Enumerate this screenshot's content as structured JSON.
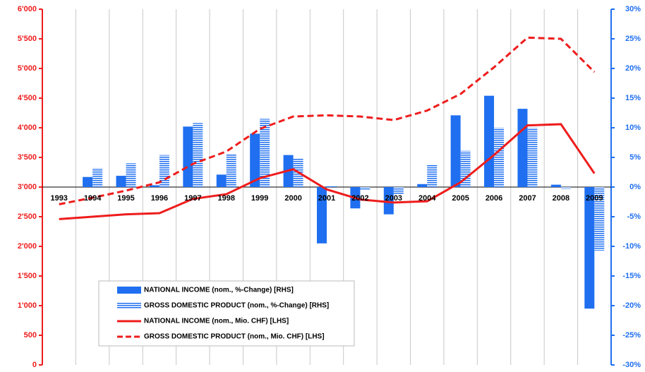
{
  "chart_data": {
    "type": "bar",
    "categories": [
      "1993",
      "1994",
      "1995",
      "1996",
      "1997",
      "1998",
      "1999",
      "2000",
      "2001",
      "2002",
      "2003",
      "2004",
      "2005",
      "2006",
      "2007",
      "2008",
      "2009"
    ],
    "series": [
      {
        "name": "NATIONAL INCOME (nom., %-Change) [RHS]",
        "type": "bar",
        "axis": "y2",
        "color": "#1f6ff0",
        "fill_style": "solid",
        "values": [
          null,
          1.7,
          1.9,
          0.3,
          10.2,
          2.1,
          9.0,
          5.4,
          -9.5,
          -3.6,
          -4.6,
          0.5,
          12.1,
          15.4,
          13.2,
          0.4,
          -20.5
        ]
      },
      {
        "name": "GROSS DOMESTIC PRODUCT (nom., %-Change) [RHS]",
        "type": "bar",
        "axis": "y2",
        "color": "#1f6ff0",
        "fill_style": "striped",
        "values": [
          null,
          3.2,
          4.0,
          5.4,
          10.8,
          5.5,
          11.5,
          4.8,
          0.2,
          -0.4,
          -1.2,
          3.8,
          6.1,
          10.0,
          10.0,
          -0.3,
          -10.7
        ]
      },
      {
        "name": "NATIONAL INCOME (nom., Mio. CHF) [LHS]",
        "type": "line",
        "color": "#ee1c1c",
        "dashed": false,
        "values": [
          2460,
          2500,
          2540,
          2560,
          2800,
          2880,
          3150,
          3300,
          2960,
          2790,
          2740,
          2760,
          3080,
          3540,
          4040,
          4060,
          3230
        ]
      },
      {
        "name": "GROSS DOMESTIC PRODUCT (nom., Mio. CHF) [LHS]",
        "type": "line",
        "color": "#ee1c1c",
        "dashed": true,
        "values": [
          2710,
          2820,
          2940,
          3080,
          3390,
          3600,
          3980,
          4190,
          4210,
          4190,
          4130,
          4290,
          4570,
          5020,
          5520,
          5500,
          4940
        ]
      }
    ],
    "ylim": [
      0,
      6000
    ],
    "yticks": [
      0,
      500,
      {
        "value": 1000,
        "label": "1'000"
      },
      {
        "value": 1500,
        "label": "1'500"
      },
      {
        "value": 2000,
        "label": "2'000"
      },
      {
        "value": 2500,
        "label": "2'500"
      },
      {
        "value": 3000,
        "label": "3'000"
      },
      {
        "value": 3500,
        "label": "3'500"
      },
      {
        "value": 4000,
        "label": "4'000"
      },
      {
        "value": 4500,
        "label": "4'500"
      },
      {
        "value": 5000,
        "label": "5'000"
      },
      {
        "value": 5500,
        "label": "5'500"
      },
      {
        "value": 6000,
        "label": "6'000"
      }
    ],
    "y2lim": [
      -30,
      30
    ],
    "y2ticks": [
      {
        "value": -30,
        "label": "-30%"
      },
      {
        "value": -25,
        "label": "-25%"
      },
      {
        "value": -20,
        "label": "-20%"
      },
      {
        "value": -15,
        "label": "-15%"
      },
      {
        "value": -10,
        "label": "-10%"
      },
      {
        "value": -5,
        "label": "-5%"
      },
      {
        "value": 0,
        "label": "0%"
      },
      {
        "value": 5,
        "label": "5%"
      },
      {
        "value": 10,
        "label": "10%"
      },
      {
        "value": 15,
        "label": "15%"
      },
      {
        "value": 20,
        "label": "20%"
      },
      {
        "value": 25,
        "label": "25%"
      },
      {
        "value": 30,
        "label": "30%"
      }
    ],
    "y_color": "#ee1c1c",
    "y2_color": "#1f6ff0",
    "grid": true,
    "legend_position": "lower-left"
  }
}
